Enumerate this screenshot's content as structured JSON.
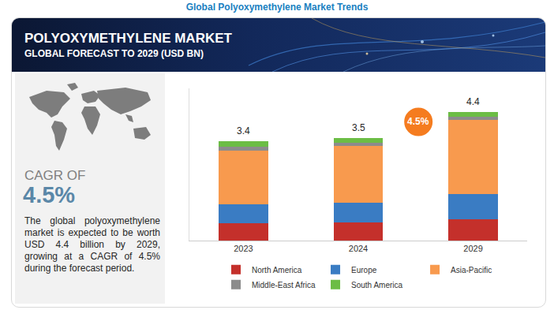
{
  "header": {
    "page_title": "Global Polyoxymethylene Market Trends",
    "title": "POLYOXYMETHYLENE MARKET",
    "subtitle": "GLOBAL FORECAST TO 2029 (USD BN)"
  },
  "sidebar": {
    "cagr_label": "CAGR OF",
    "cagr": "4.5%",
    "description": "The global polyoxymethylene market is expected to be worth USD 4.4 billion by 2029, growing at a CAGR of 4.5% during the forecast period."
  },
  "chart_data": {
    "type": "bar",
    "stacked": true,
    "categories": [
      "2023",
      "2024",
      "2029"
    ],
    "series": [
      {
        "name": "North America",
        "color": "#c4302b",
        "values": [
          0.6,
          0.62,
          0.74
        ]
      },
      {
        "name": "Europe",
        "color": "#3a7cc3",
        "values": [
          0.65,
          0.67,
          0.84
        ]
      },
      {
        "name": "Asia-Pacific",
        "color": "#f89a4e",
        "values": [
          1.83,
          1.94,
          2.53
        ]
      },
      {
        "name": "Middle-East Africa",
        "color": "#8c8c8c",
        "values": [
          0.12,
          0.1,
          0.12
        ]
      },
      {
        "name": "South America",
        "color": "#6cbd45",
        "values": [
          0.2,
          0.17,
          0.17
        ]
      }
    ],
    "totals": [
      3.4,
      3.5,
      4.4
    ],
    "badge": "4.5%",
    "ylim": [
      0,
      5.2
    ],
    "yticks": [
      0
    ],
    "grid": false,
    "tick_labels": "x",
    "legend": "bottom"
  }
}
